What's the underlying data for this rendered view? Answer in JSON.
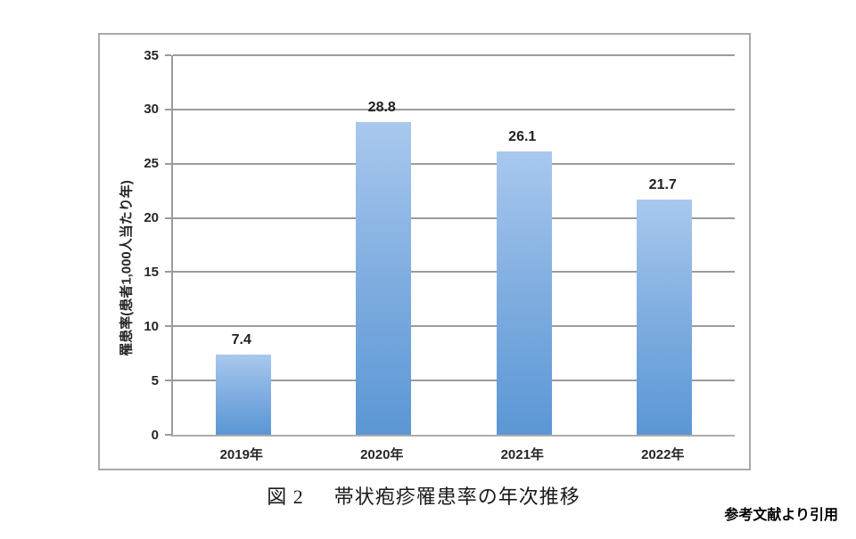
{
  "figure": {
    "caption_prefix": "図 2",
    "caption_title": "帯状疱疹罹患率の年次推移",
    "credit": "参考文献より引用"
  },
  "chart_data": {
    "type": "bar",
    "categories": [
      "2019年",
      "2020年",
      "2021年",
      "2022年"
    ],
    "values": [
      7.4,
      28.8,
      26.1,
      21.7
    ],
    "data_labels": [
      "7.4",
      "28.8",
      "26.1",
      "21.7"
    ],
    "title": "",
    "xlabel": "",
    "ylabel": "罹患率(患者1,000人当たり年)",
    "ylim": [
      0,
      35
    ],
    "ytick_step": 5,
    "yticks": [
      0,
      5,
      10,
      15,
      20,
      25,
      30,
      35
    ],
    "grid": true,
    "legend": false,
    "colors": {
      "bar_top": "#a9c8ee",
      "bar_mid": "#7fade0",
      "bar_bottom": "#5b97d5",
      "gridline": "#9b9b9b",
      "axis": "#9b9b9b",
      "text": "#262626",
      "border": "#a9a9a9"
    }
  }
}
